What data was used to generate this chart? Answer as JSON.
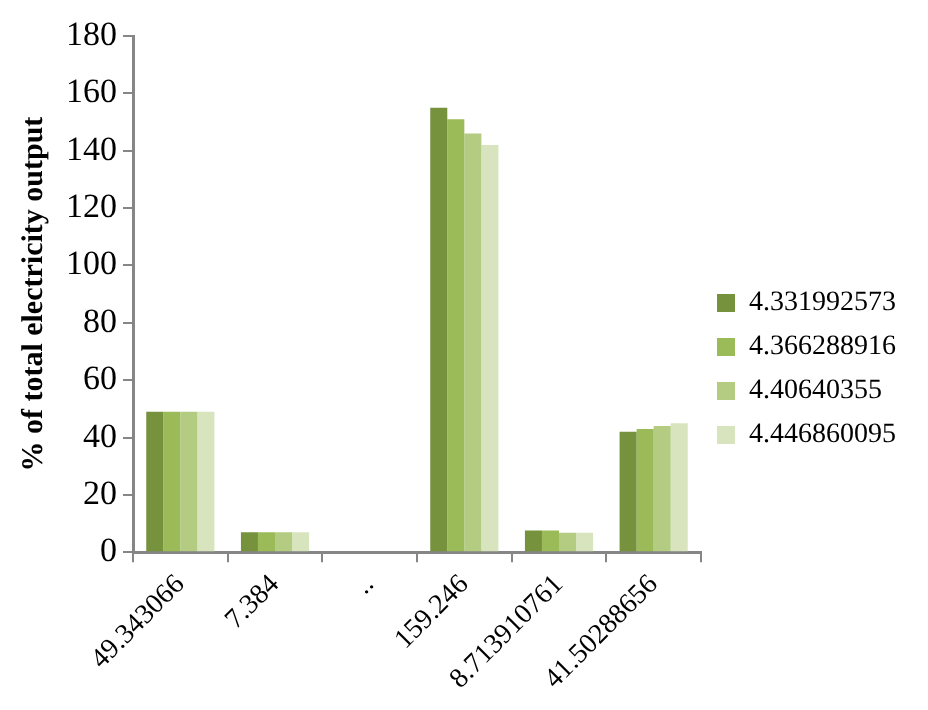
{
  "chart_data": {
    "type": "bar",
    "ylabel": "% of total electricity output",
    "categories": [
      "49.343066",
      "7.384",
      "..",
      "159.246",
      "8.713910761",
      "41.50288656"
    ],
    "series": [
      {
        "name": "4.331992573",
        "color": "#76923c",
        "values": [
          49,
          7,
          null,
          155,
          7.6,
          42
        ]
      },
      {
        "name": "4.366288916",
        "color": "#9bbb59",
        "values": [
          49,
          7,
          null,
          151,
          7.6,
          43
        ]
      },
      {
        "name": "4.40640355",
        "color": "#b3cc82",
        "values": [
          49,
          7,
          null,
          146,
          6.8,
          44
        ]
      },
      {
        "name": "4.446860095",
        "color": "#d7e4bd",
        "values": [
          49,
          7,
          null,
          142,
          6.8,
          45
        ]
      }
    ],
    "ylim": [
      0,
      180
    ],
    "yticks": [
      0,
      20,
      40,
      60,
      80,
      100,
      120,
      140,
      160,
      180
    ],
    "grid": false,
    "legend": "right"
  }
}
